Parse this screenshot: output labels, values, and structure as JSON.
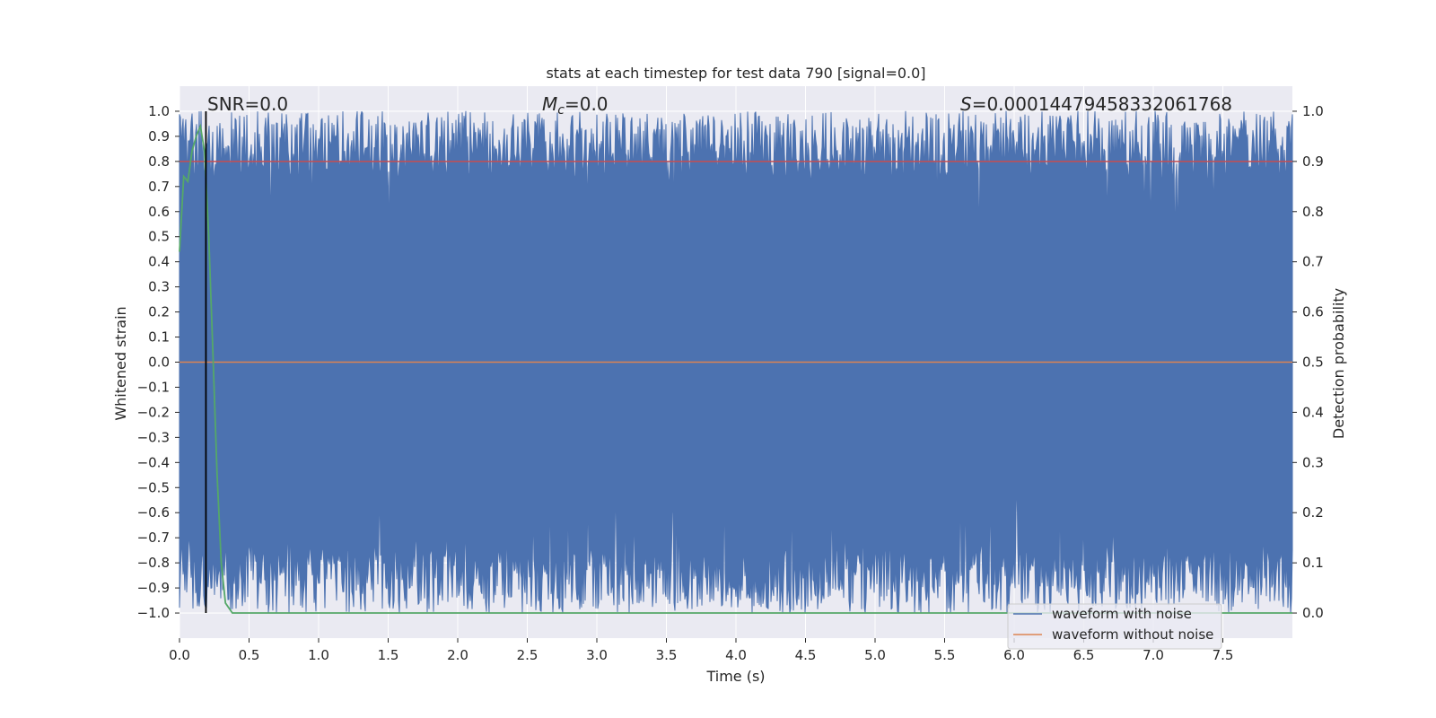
{
  "chart_data": {
    "type": "line",
    "title": "stats at each timestep for test data 790 [signal=0.0]",
    "xlabel": "Time (s)",
    "ylabel": "Whitened strain",
    "y2label": "Detection probability",
    "xlim": [
      0.0,
      8.0
    ],
    "ylim": [
      -1.1,
      1.1
    ],
    "y2lim": [
      -0.05,
      1.05
    ],
    "x_ticks": [
      0.0,
      0.5,
      1.0,
      1.5,
      2.0,
      2.5,
      3.0,
      3.5,
      4.0,
      4.5,
      5.0,
      5.5,
      6.0,
      6.5,
      7.0,
      7.5
    ],
    "x_tick_labels": [
      "0.0",
      "0.5",
      "1.0",
      "1.5",
      "2.0",
      "2.5",
      "3.0",
      "3.5",
      "4.0",
      "4.5",
      "5.0",
      "5.5",
      "6.0",
      "6.5",
      "7.0",
      "7.5"
    ],
    "y_ticks": [
      1.0,
      0.9,
      0.8,
      0.7,
      0.6,
      0.5,
      0.4,
      0.3,
      0.2,
      0.1,
      0.0,
      -0.1,
      -0.2,
      -0.3,
      -0.4,
      -0.5,
      -0.6,
      -0.7,
      -0.8,
      -0.9,
      -1.0
    ],
    "y_tick_labels": [
      "1.0",
      "0.9",
      "0.8",
      "0.7",
      "0.6",
      "0.5",
      "0.4",
      "0.3",
      "0.2",
      "0.1",
      "0.0",
      "−0.1",
      "−0.2",
      "−0.3",
      "−0.4",
      "−0.5",
      "−0.6",
      "−0.7",
      "−0.8",
      "−0.9",
      "−1.0"
    ],
    "y2_ticks": [
      1.0,
      0.9,
      0.8,
      0.7,
      0.6,
      0.5,
      0.4,
      0.3,
      0.2,
      0.1,
      0.0
    ],
    "y2_tick_labels": [
      "1.0",
      "0.9",
      "0.8",
      "0.7",
      "0.6",
      "0.5",
      "0.4",
      "0.3",
      "0.2",
      "0.1",
      "0.0"
    ],
    "annotations": {
      "snr": "SNR=0.0",
      "mc_symbol": "M",
      "mc_sub": "c",
      "mc_value": "=0.0",
      "s_symbol": "S",
      "s_value": "=0.00014479458332061768"
    },
    "series": [
      {
        "name": "waveform with noise",
        "color": "#4c72b0",
        "description_of_values": "whitened noise spanning roughly -1.0 to 1.0 over 0-8 s"
      },
      {
        "name": "waveform without noise",
        "color": "#dd8452",
        "x": [
          0.0,
          8.0
        ],
        "y": [
          0.0,
          0.0
        ]
      },
      {
        "color": "#c44e52",
        "axis": "right",
        "x": [
          0.0,
          8.0
        ],
        "y": [
          0.9,
          0.9
        ]
      },
      {
        "color": "#55a868",
        "axis": "right",
        "x": [
          0.0,
          0.03,
          0.06,
          0.09,
          0.12,
          0.15,
          0.18,
          0.21,
          0.24,
          0.27,
          0.3,
          0.33,
          0.38,
          0.5,
          1.0,
          8.0
        ],
        "y": [
          0.72,
          0.87,
          0.86,
          0.92,
          0.95,
          0.97,
          0.92,
          0.75,
          0.52,
          0.28,
          0.1,
          0.02,
          0.0,
          0.0,
          0.0,
          0.0
        ]
      },
      {
        "color": "#000000",
        "type": "vline",
        "x": 0.19
      }
    ],
    "legend": {
      "placement": "lower-right",
      "entries": [
        "waveform with noise",
        "waveform without noise"
      ]
    },
    "grid": true,
    "colors": {
      "axes_bg": "#eaeaf2",
      "grid": "#ffffff",
      "noise": "#4c72b0",
      "clean": "#dd8452",
      "threshold": "#c44e52",
      "prob": "#55a868",
      "marker": "#000000"
    }
  }
}
